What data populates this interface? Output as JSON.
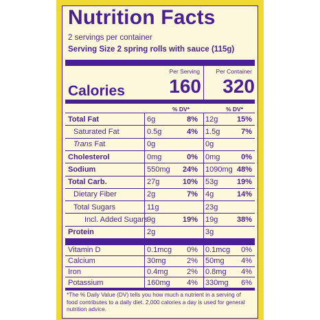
{
  "title": "Nutrition Facts",
  "servings_per_container": "2 servings per container",
  "serving_size": "Serving Size 2 spring rolls with sauce (115g)",
  "columns": {
    "per_serving": "Per Serving",
    "per_container": "Per Container"
  },
  "calories": {
    "label": "Calories",
    "per_serving": "160",
    "per_container": "320"
  },
  "dv_header": "% DV*",
  "nutrients": [
    {
      "label": "Total Fat",
      "bold": true,
      "indent": 0,
      "s_amt": "6g",
      "s_dv": "8%",
      "c_amt": "12g",
      "c_dv": "15%"
    },
    {
      "label": "Saturated Fat",
      "bold": false,
      "indent": 1,
      "s_amt": "0.5g",
      "s_dv": "4%",
      "c_amt": "1.5g",
      "c_dv": "7%"
    },
    {
      "label": "Trans Fat",
      "italic_word": "Trans",
      "rest": " Fat",
      "bold": false,
      "indent": 1,
      "s_amt": "0g",
      "s_dv": "",
      "c_amt": "0g",
      "c_dv": ""
    },
    {
      "label": "Cholesterol",
      "bold": true,
      "indent": 0,
      "s_amt": "0mg",
      "s_dv": "0%",
      "c_amt": "0mg",
      "c_dv": "0%"
    },
    {
      "label": "Sodium",
      "bold": true,
      "indent": 0,
      "s_amt": "550mg",
      "s_dv": "24%",
      "c_amt": "1090mg",
      "c_dv": "48%"
    },
    {
      "label": "Total Carb.",
      "bold": true,
      "indent": 0,
      "s_amt": "27g",
      "s_dv": "10%",
      "c_amt": "53g",
      "c_dv": "19%"
    },
    {
      "label": "Dietary Fiber",
      "bold": false,
      "indent": 1,
      "s_amt": "2g",
      "s_dv": "7%",
      "c_amt": "4g",
      "c_dv": "14%"
    },
    {
      "label": "Total Sugars",
      "bold": false,
      "indent": 1,
      "s_amt": "11g",
      "s_dv": "",
      "c_amt": "23g",
      "c_dv": ""
    },
    {
      "label": "Incl. Added Sugars",
      "bold": false,
      "indent": 2,
      "s_amt": "9g",
      "s_dv": "19%",
      "c_amt": "19g",
      "c_dv": "38%"
    },
    {
      "label": "Protein",
      "bold": true,
      "indent": 0,
      "s_amt": "2g",
      "s_dv": "",
      "c_amt": "3g",
      "c_dv": ""
    }
  ],
  "vitamins": [
    {
      "label": "Vitamin D",
      "s_amt": "0.1mcg",
      "s_dv": "0%",
      "c_amt": "0.1mcg",
      "c_dv": "0%"
    },
    {
      "label": "Calcium",
      "s_amt": "30mg",
      "s_dv": "2%",
      "c_amt": "50mg",
      "c_dv": "4%"
    },
    {
      "label": "Iron",
      "s_amt": "0.4mg",
      "s_dv": "2%",
      "c_amt": "0.8mg",
      "c_dv": "4%"
    },
    {
      "label": "Potassium",
      "s_amt": "160mg",
      "s_dv": "4%",
      "c_amt": "330mg",
      "c_dv": "6%"
    }
  ],
  "footnote": "*The % Daily Value (DV) tells you how much a nutrient in a serving of food contributes to a daily diet. 2,000 calories a day is used for general nutrition advice.",
  "colors": {
    "primary": "#4a1e94",
    "frame": "#f1d934",
    "panel": "#fdf7dc"
  }
}
